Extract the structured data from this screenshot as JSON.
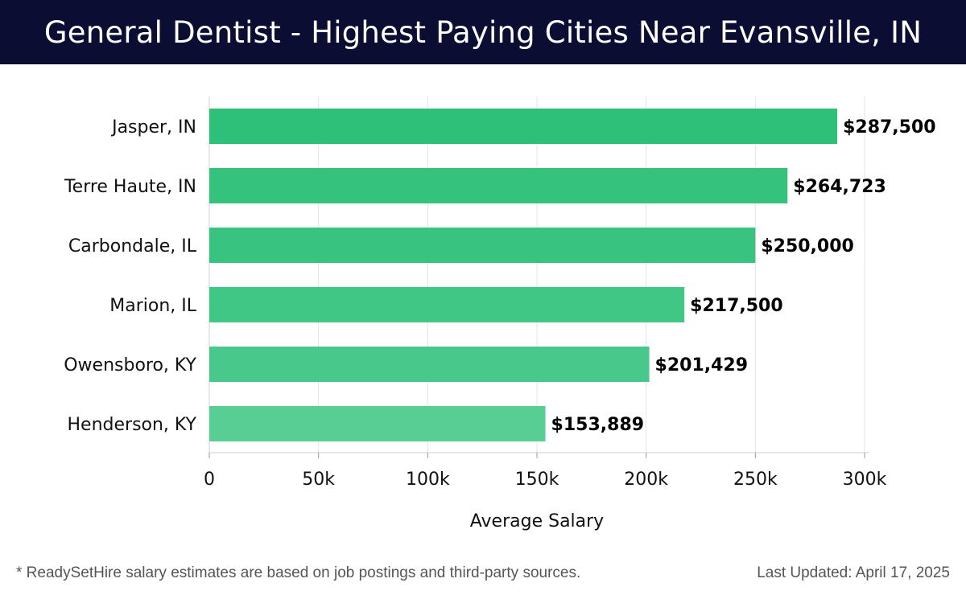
{
  "title": "General Dentist - Highest Paying Cities Near Evansville, IN",
  "footnote": "* ReadySetHire salary estimates are based on job postings and third-party sources.",
  "last_updated": "Last Updated: April 17, 2025",
  "chart_data": {
    "type": "bar",
    "orientation": "horizontal",
    "categories": [
      "Jasper, IN",
      "Terre Haute, IN",
      "Carbondale, IL",
      "Marion, IL",
      "Owensboro, KY",
      "Henderson, KY"
    ],
    "values": [
      287500,
      264723,
      250000,
      217500,
      201429,
      153889
    ],
    "data_labels": [
      "$287,500",
      "$264,723",
      "$250,000",
      "$217,500",
      "$201,429",
      "$153,889"
    ],
    "xlabel": "Average Salary",
    "ylabel": "",
    "xlim": [
      0,
      300000
    ],
    "x_ticks": [
      0,
      50000,
      100000,
      150000,
      200000,
      250000,
      300000
    ],
    "x_tick_labels": [
      "0",
      "50k",
      "100k",
      "150k",
      "200k",
      "250k",
      "300k"
    ],
    "grid": "vertical",
    "bar_colors": [
      "#2ebf78",
      "#34c27c",
      "#38c480",
      "#40c685",
      "#48c98b",
      "#58cd94"
    ]
  }
}
